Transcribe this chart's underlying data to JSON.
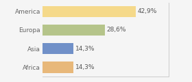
{
  "categories": [
    "America",
    "Europa",
    "Asia",
    "Africa"
  ],
  "values": [
    42.9,
    28.6,
    14.3,
    14.3
  ],
  "labels": [
    "42,9%",
    "28,6%",
    "14,3%",
    "14,3%"
  ],
  "bar_colors": [
    "#f5d98a",
    "#b5c48a",
    "#7090c8",
    "#e8b87a"
  ],
  "background_color": "#f5f5f5",
  "xlim": [
    0,
    58
  ],
  "label_fontsize": 6.5,
  "tick_fontsize": 6.5,
  "bar_height": 0.6
}
